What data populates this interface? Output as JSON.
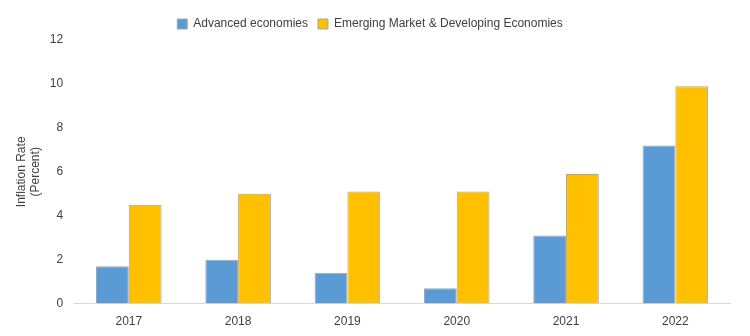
{
  "chart_data": {
    "type": "bar",
    "y_label": [
      "Inflation Rate",
      "(Percent)"
    ],
    "categories": [
      "2017",
      "2018",
      "2019",
      "2020",
      "2021",
      "2022"
    ],
    "series": [
      {
        "name": "Advanced economies",
        "color": "#5b9bd5",
        "values": [
          1.7,
          2.0,
          1.4,
          0.7,
          3.1,
          7.2
        ]
      },
      {
        "name": "Emerging Market & Developing Economies",
        "color": "#ffc000",
        "values": [
          4.5,
          5.0,
          5.1,
          5.1,
          5.9,
          9.9
        ]
      }
    ],
    "ylim": [
      0,
      12
    ],
    "yticks": [
      0,
      2,
      4,
      6,
      8,
      10,
      12
    ],
    "grid": false,
    "legend": "top"
  }
}
